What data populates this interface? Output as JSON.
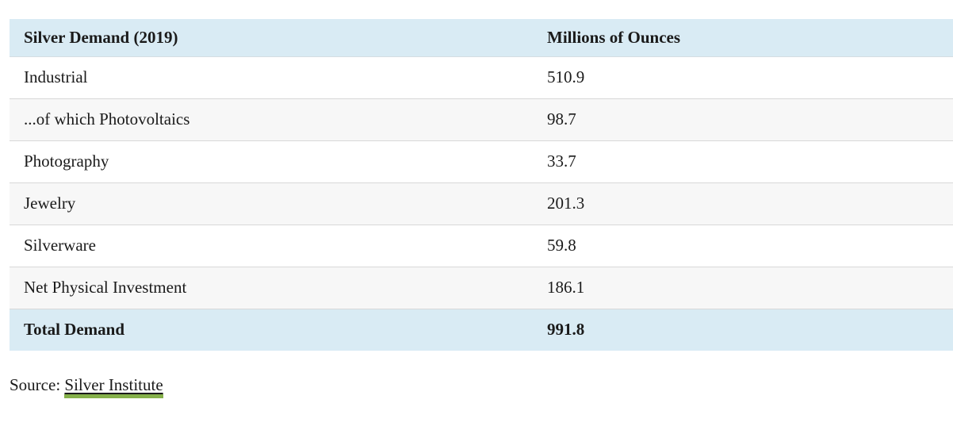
{
  "table": {
    "header": {
      "col1": "Silver Demand (2019)",
      "col2": "Millions of Ounces"
    },
    "rows": [
      {
        "label": "Industrial",
        "value": "510.9"
      },
      {
        "label": "...of which Photovoltaics",
        "value": "98.7"
      },
      {
        "label": "Photography",
        "value": "33.7"
      },
      {
        "label": "Jewelry",
        "value": "201.3"
      },
      {
        "label": "Silverware",
        "value": "59.8"
      },
      {
        "label": "Net Physical Investment",
        "value": "186.1"
      }
    ],
    "total": {
      "label": "Total Demand",
      "value": "991.8"
    }
  },
  "source": {
    "prefix": "Source: ",
    "link_text": "Silver Institute"
  },
  "colors": {
    "header_bg": "#d9ebf4",
    "total_bg": "#d9ebf4",
    "alt_row_bg": "#f7f7f7",
    "row_border": "#d8d8d8",
    "text": "#1a1a1a",
    "link_underline_green": "#85b04a"
  },
  "chart_data": {
    "type": "table",
    "title": "Silver Demand (2019)",
    "columns": [
      "Silver Demand (2019)",
      "Millions of Ounces"
    ],
    "categories": [
      "Industrial",
      "...of which Photovoltaics",
      "Photography",
      "Jewelry",
      "Silverware",
      "Net Physical Investment",
      "Total Demand"
    ],
    "values": [
      510.9,
      98.7,
      33.7,
      201.3,
      59.8,
      186.1,
      991.8
    ],
    "unit": "Millions of Ounces",
    "source": "Silver Institute"
  }
}
